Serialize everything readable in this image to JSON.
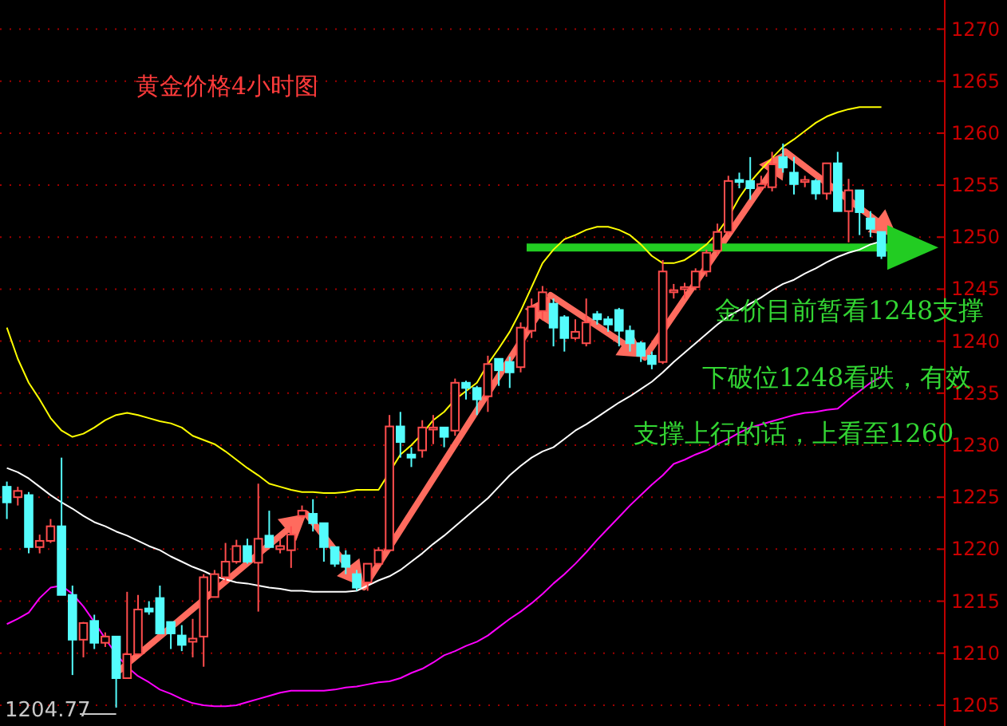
{
  "chart_data": {
    "type": "candlestick",
    "title": "黄金价格4小时图",
    "categories": [
      null,
      null,
      null,
      null,
      null,
      null,
      null,
      null,
      null,
      null,
      null,
      null,
      null,
      null,
      null,
      null,
      null,
      null,
      null,
      null,
      null,
      null,
      null,
      null,
      null,
      null,
      null,
      null,
      null,
      null,
      null,
      null,
      null,
      null,
      null,
      null,
      null,
      null,
      null,
      null,
      null,
      null,
      null,
      null,
      null,
      null,
      null,
      null,
      null,
      null,
      null,
      null,
      null,
      null,
      null,
      null,
      null,
      null,
      null,
      null,
      null,
      null,
      null,
      null,
      null,
      null,
      null,
      null,
      null,
      null,
      null,
      null,
      null,
      null,
      null,
      null,
      null,
      null,
      null,
      null,
      null
    ],
    "ohlc": [
      [
        1226.0,
        1226.5,
        1222.9,
        1224.5
      ],
      [
        1225.0,
        1226.0,
        1224.2,
        1225.6
      ],
      [
        1225.2,
        1225.5,
        1219.6,
        1220.2
      ],
      [
        1220.2,
        1221.4,
        1219.6,
        1220.8
      ],
      [
        1220.8,
        1222.9,
        1220.6,
        1222.2
      ],
      [
        1222.2,
        1228.8,
        1215.6,
        1215.6
      ],
      [
        1215.6,
        1216.5,
        1207.9,
        1211.3
      ],
      [
        1211.3,
        1213.0,
        1209.6,
        1212.9
      ],
      [
        1213.1,
        1213.7,
        1210.4,
        1211.0
      ],
      [
        1211.0,
        1212.0,
        1210.6,
        1211.6
      ],
      [
        1211.6,
        1211.6,
        1204.77,
        1207.6
      ],
      [
        1207.6,
        1215.9,
        1207.6,
        1209.9
      ],
      [
        1209.9,
        1215.6,
        1209.9,
        1214.2
      ],
      [
        1214.3,
        1215.0,
        1213.7,
        1214.0
      ],
      [
        1215.3,
        1216.5,
        1211.9,
        1211.9
      ],
      [
        1213.0,
        1213.0,
        1210.4,
        1211.9
      ],
      [
        1211.7,
        1212.7,
        1210.2,
        1210.8
      ],
      [
        1211.1,
        1213.3,
        1209.6,
        1211.4
      ],
      [
        1211.6,
        1217.6,
        1208.7,
        1217.3
      ],
      [
        1215.4,
        1218.0,
        1215.4,
        1217.6
      ],
      [
        1217.3,
        1220.6,
        1216.8,
        1218.8
      ],
      [
        1218.8,
        1220.9,
        1218.6,
        1220.3
      ],
      [
        1220.3,
        1221.0,
        1218.6,
        1218.8
      ],
      [
        1218.7,
        1226.3,
        1214.0,
        1221.0
      ],
      [
        1221.3,
        1223.7,
        1220.2,
        1220.2
      ],
      [
        1220.0,
        1221.0,
        1219.6,
        1220.3
      ],
      [
        1219.9,
        1222.2,
        1218.2,
        1221.4
      ],
      [
        1223.2,
        1224.2,
        1223.0,
        1223.7
      ],
      [
        1223.4,
        1224.8,
        1221.7,
        1222.5
      ],
      [
        1222.5,
        1222.5,
        1218.8,
        1220.2
      ],
      [
        1220.2,
        1220.2,
        1218.3,
        1218.6
      ],
      [
        1219.4,
        1219.9,
        1217.6,
        1218.3
      ],
      [
        1217.6,
        1218.0,
        1216.0,
        1216.3
      ],
      [
        1216.8,
        1218.6,
        1216.0,
        1218.6
      ],
      [
        1218.6,
        1220.2,
        1218.6,
        1219.9
      ],
      [
        1219.9,
        1232.9,
        1219.9,
        1231.8
      ],
      [
        1231.8,
        1233.2,
        1228.8,
        1230.3
      ],
      [
        1229.1,
        1229.8,
        1227.9,
        1228.8
      ],
      [
        1229.5,
        1232.4,
        1228.8,
        1231.7
      ],
      [
        1231.5,
        1232.9,
        1230.1,
        1231.7
      ],
      [
        1231.7,
        1231.7,
        1229.8,
        1230.8
      ],
      [
        1231.4,
        1236.4,
        1230.9,
        1236.0
      ],
      [
        1236.0,
        1236.2,
        1234.4,
        1235.5
      ],
      [
        1235.5,
        1235.7,
        1232.9,
        1234.4
      ],
      [
        1234.7,
        1238.6,
        1233.2,
        1237.8
      ],
      [
        1238.3,
        1238.3,
        1235.7,
        1237.2
      ],
      [
        1238.0,
        1238.5,
        1235.5,
        1237.0
      ],
      [
        1237.5,
        1241.8,
        1237.0,
        1241.3
      ],
      [
        1241.0,
        1244.1,
        1240.3,
        1243.3
      ],
      [
        1242.9,
        1245.3,
        1242.0,
        1244.7
      ],
      [
        1243.6,
        1244.1,
        1239.5,
        1241.3
      ],
      [
        1242.3,
        1242.5,
        1239.0,
        1240.3
      ],
      [
        1240.3,
        1242.1,
        1240.1,
        1240.9
      ],
      [
        1239.8,
        1244.1,
        1239.5,
        1241.8
      ],
      [
        1242.6,
        1242.9,
        1241.6,
        1242.1
      ],
      [
        1242.1,
        1242.4,
        1240.9,
        1241.6
      ],
      [
        1243.0,
        1243.2,
        1239.5,
        1241.0
      ],
      [
        1241.0,
        1241.5,
        1239.0,
        1239.8
      ],
      [
        1239.8,
        1240.0,
        1238.0,
        1238.6
      ],
      [
        1238.6,
        1239.0,
        1237.3,
        1237.8
      ],
      [
        1238.0,
        1247.8,
        1237.8,
        1246.7
      ],
      [
        1244.7,
        1245.5,
        1244.1,
        1244.9
      ],
      [
        1245.0,
        1245.6,
        1244.1,
        1245.2
      ],
      [
        1245.2,
        1247.0,
        1244.9,
        1246.7
      ],
      [
        1246.7,
        1248.8,
        1246.2,
        1248.5
      ],
      [
        1248.7,
        1251.3,
        1248.2,
        1250.5
      ],
      [
        1250.5,
        1255.9,
        1250.2,
        1255.4
      ],
      [
        1255.5,
        1256.2,
        1254.7,
        1255.3
      ],
      [
        1255.4,
        1257.7,
        1253.6,
        1254.7
      ],
      [
        1254.8,
        1255.9,
        1254.4,
        1255.1
      ],
      [
        1254.8,
        1258.2,
        1254.4,
        1257.0
      ],
      [
        1257.7,
        1259.0,
        1256.2,
        1256.7
      ],
      [
        1256.2,
        1257.7,
        1254.1,
        1255.1
      ],
      [
        1255.3,
        1255.9,
        1254.8,
        1255.5
      ],
      [
        1255.4,
        1255.6,
        1253.6,
        1254.2
      ],
      [
        1254.2,
        1257.1,
        1253.6,
        1257.1
      ],
      [
        1257.1,
        1258.2,
        1252.5,
        1252.5
      ],
      [
        1252.5,
        1255.6,
        1249.5,
        1254.5
      ],
      [
        1254.5,
        1254.5,
        1250.2,
        1252.4
      ],
      [
        1251.8,
        1252.5,
        1250.0,
        1250.8
      ],
      [
        1250.5,
        1250.5,
        1247.9,
        1248.2
      ]
    ],
    "colors": [
      "#54fcfc",
      "#ff4d4d",
      "#54fcfc",
      "#ff4d4d",
      "#ff4d4d",
      "#54fcfc",
      "#54fcfc",
      "#ff4d4d",
      "#54fcfc",
      "#ff4d4d",
      "#54fcfc",
      "#ff4d4d",
      "#ff4d4d",
      "#54fcfc",
      "#54fcfc",
      "#54fcfc",
      "#54fcfc",
      "#ff4d4d",
      "#ff4d4d",
      "#ff4d4d",
      "#ff4d4d",
      "#ff4d4d",
      "#54fcfc",
      "#ff4d4d",
      "#54fcfc",
      "#ff4d4d",
      "#ff4d4d",
      "#ff4d4d",
      "#54fcfc",
      "#54fcfc",
      "#54fcfc",
      "#54fcfc",
      "#54fcfc",
      "#ff4d4d",
      "#ff4d4d",
      "#ff4d4d",
      "#54fcfc",
      "#54fcfc",
      "#ff4d4d",
      "#ff4d4d",
      "#54fcfc",
      "#ff4d4d",
      "#54fcfc",
      "#54fcfc",
      "#ff4d4d",
      "#54fcfc",
      "#54fcfc",
      "#ff4d4d",
      "#ff4d4d",
      "#ff4d4d",
      "#54fcfc",
      "#54fcfc",
      "#ff4d4d",
      "#ff4d4d",
      "#54fcfc",
      "#54fcfc",
      "#54fcfc",
      "#54fcfc",
      "#54fcfc",
      "#54fcfc",
      "#ff4d4d",
      "#ff4d4d",
      "#ff4d4d",
      "#ff4d4d",
      "#ff4d4d",
      "#ff4d4d",
      "#ff4d4d",
      "#54fcfc",
      "#54fcfc",
      "#ff4d4d",
      "#ff4d4d",
      "#54fcfc",
      "#54fcfc",
      "#ff4d4d",
      "#54fcfc",
      "#ff4d4d",
      "#54fcfc",
      "#ff4d4d",
      "#54fcfc",
      "#54fcfc",
      "#54fcfc"
    ],
    "series": [
      {
        "type": "line",
        "color": "#ffff00",
        "values": [
          1241.3,
          1238.3,
          1236.0,
          1234.4,
          1232.6,
          1231.4,
          1230.8,
          1231.1,
          1231.7,
          1232.4,
          1232.9,
          1233.1,
          1232.9,
          1232.6,
          1232.3,
          1232.1,
          1231.7,
          1230.9,
          1230.5,
          1230.1,
          1229.4,
          1228.6,
          1227.8,
          1227.1,
          1226.3,
          1226.0,
          1225.7,
          1225.5,
          1225.5,
          1225.4,
          1225.4,
          1225.5,
          1225.7,
          1225.7,
          1225.7,
          1227.4,
          1229.1,
          1230.0,
          1231.1,
          1232.4,
          1233.2,
          1234.4,
          1235.2,
          1236.0,
          1237.8,
          1239.3,
          1240.9,
          1242.9,
          1245.2,
          1247.5,
          1248.8,
          1249.8,
          1250.2,
          1250.7,
          1251.0,
          1251.0,
          1250.7,
          1250.2,
          1249.3,
          1248.2,
          1247.5,
          1247.5,
          1247.8,
          1248.5,
          1249.3,
          1250.4,
          1251.9,
          1253.8,
          1255.3,
          1256.5,
          1257.6,
          1258.7,
          1259.4,
          1260.2,
          1261.0,
          1261.6,
          1262.0,
          1262.3,
          1262.5,
          1262.5,
          1262.5
        ]
      },
      {
        "type": "line",
        "color": "#ffffff",
        "values": [
          1227.8,
          1227.4,
          1226.8,
          1226.0,
          1225.2,
          1224.5,
          1223.9,
          1223.2,
          1222.6,
          1222.2,
          1221.7,
          1221.3,
          1220.8,
          1220.3,
          1219.9,
          1219.3,
          1218.8,
          1218.3,
          1217.9,
          1217.4,
          1217.1,
          1216.8,
          1216.7,
          1216.5,
          1216.3,
          1216.2,
          1216.0,
          1216.0,
          1215.9,
          1215.9,
          1215.9,
          1215.9,
          1216.0,
          1216.5,
          1217.0,
          1217.4,
          1218.0,
          1218.8,
          1219.6,
          1220.5,
          1221.3,
          1222.2,
          1223.1,
          1224.0,
          1224.9,
          1226.0,
          1227.1,
          1228.0,
          1228.8,
          1229.4,
          1229.8,
          1230.6,
          1231.4,
          1232.0,
          1232.7,
          1233.4,
          1234.1,
          1234.7,
          1235.4,
          1236.1,
          1237.0,
          1238.0,
          1238.9,
          1239.8,
          1240.7,
          1241.6,
          1242.4,
          1243.0,
          1243.6,
          1244.2,
          1244.9,
          1245.5,
          1245.9,
          1246.5,
          1247.0,
          1247.6,
          1248.1,
          1248.5,
          1248.8,
          1249.3,
          1249.6
        ]
      },
      {
        "type": "line",
        "color": "#ff00ff",
        "values": [
          1212.8,
          1213.3,
          1213.9,
          1215.3,
          1216.3,
          1216.5,
          1215.7,
          1214.5,
          1213.0,
          1211.4,
          1209.9,
          1208.7,
          1207.8,
          1207.2,
          1206.5,
          1206.1,
          1205.6,
          1205.2,
          1205.0,
          1204.9,
          1204.9,
          1205.0,
          1205.3,
          1205.6,
          1205.9,
          1206.2,
          1206.4,
          1206.4,
          1206.4,
          1206.4,
          1206.5,
          1206.7,
          1206.8,
          1207.0,
          1207.2,
          1207.3,
          1207.6,
          1208.1,
          1208.5,
          1209.1,
          1209.8,
          1210.2,
          1210.7,
          1211.1,
          1211.7,
          1212.5,
          1213.3,
          1214.0,
          1214.8,
          1215.7,
          1216.7,
          1217.6,
          1218.6,
          1219.7,
          1220.9,
          1222.0,
          1223.1,
          1224.2,
          1225.2,
          1226.2,
          1227.1,
          1228.2,
          1228.6,
          1229.1,
          1229.5,
          1230.1,
          1230.6,
          1231.2,
          1231.7,
          1232.0,
          1232.3,
          1232.6,
          1232.9,
          1233.1,
          1233.2,
          1233.4,
          1233.5,
          1234.4,
          1235.2,
          1236.0,
          1236.6
        ]
      }
    ],
    "ylim": [
      1203,
      1272.8
    ],
    "yticks": [
      1205,
      1210,
      1215,
      1220,
      1225,
      1230,
      1235,
      1240,
      1245,
      1250,
      1255,
      1260,
      1265,
      1270
    ],
    "grid": "y",
    "ref_lines": [
      {
        "axis": "y",
        "value": 1249,
        "color": "#22cc22"
      }
    ],
    "annotations": [
      "金价目前暂看1248支撑",
      "下破位1248看跌，有效",
      "支撑上行的话，上看至1260",
      "1204.77"
    ]
  }
}
